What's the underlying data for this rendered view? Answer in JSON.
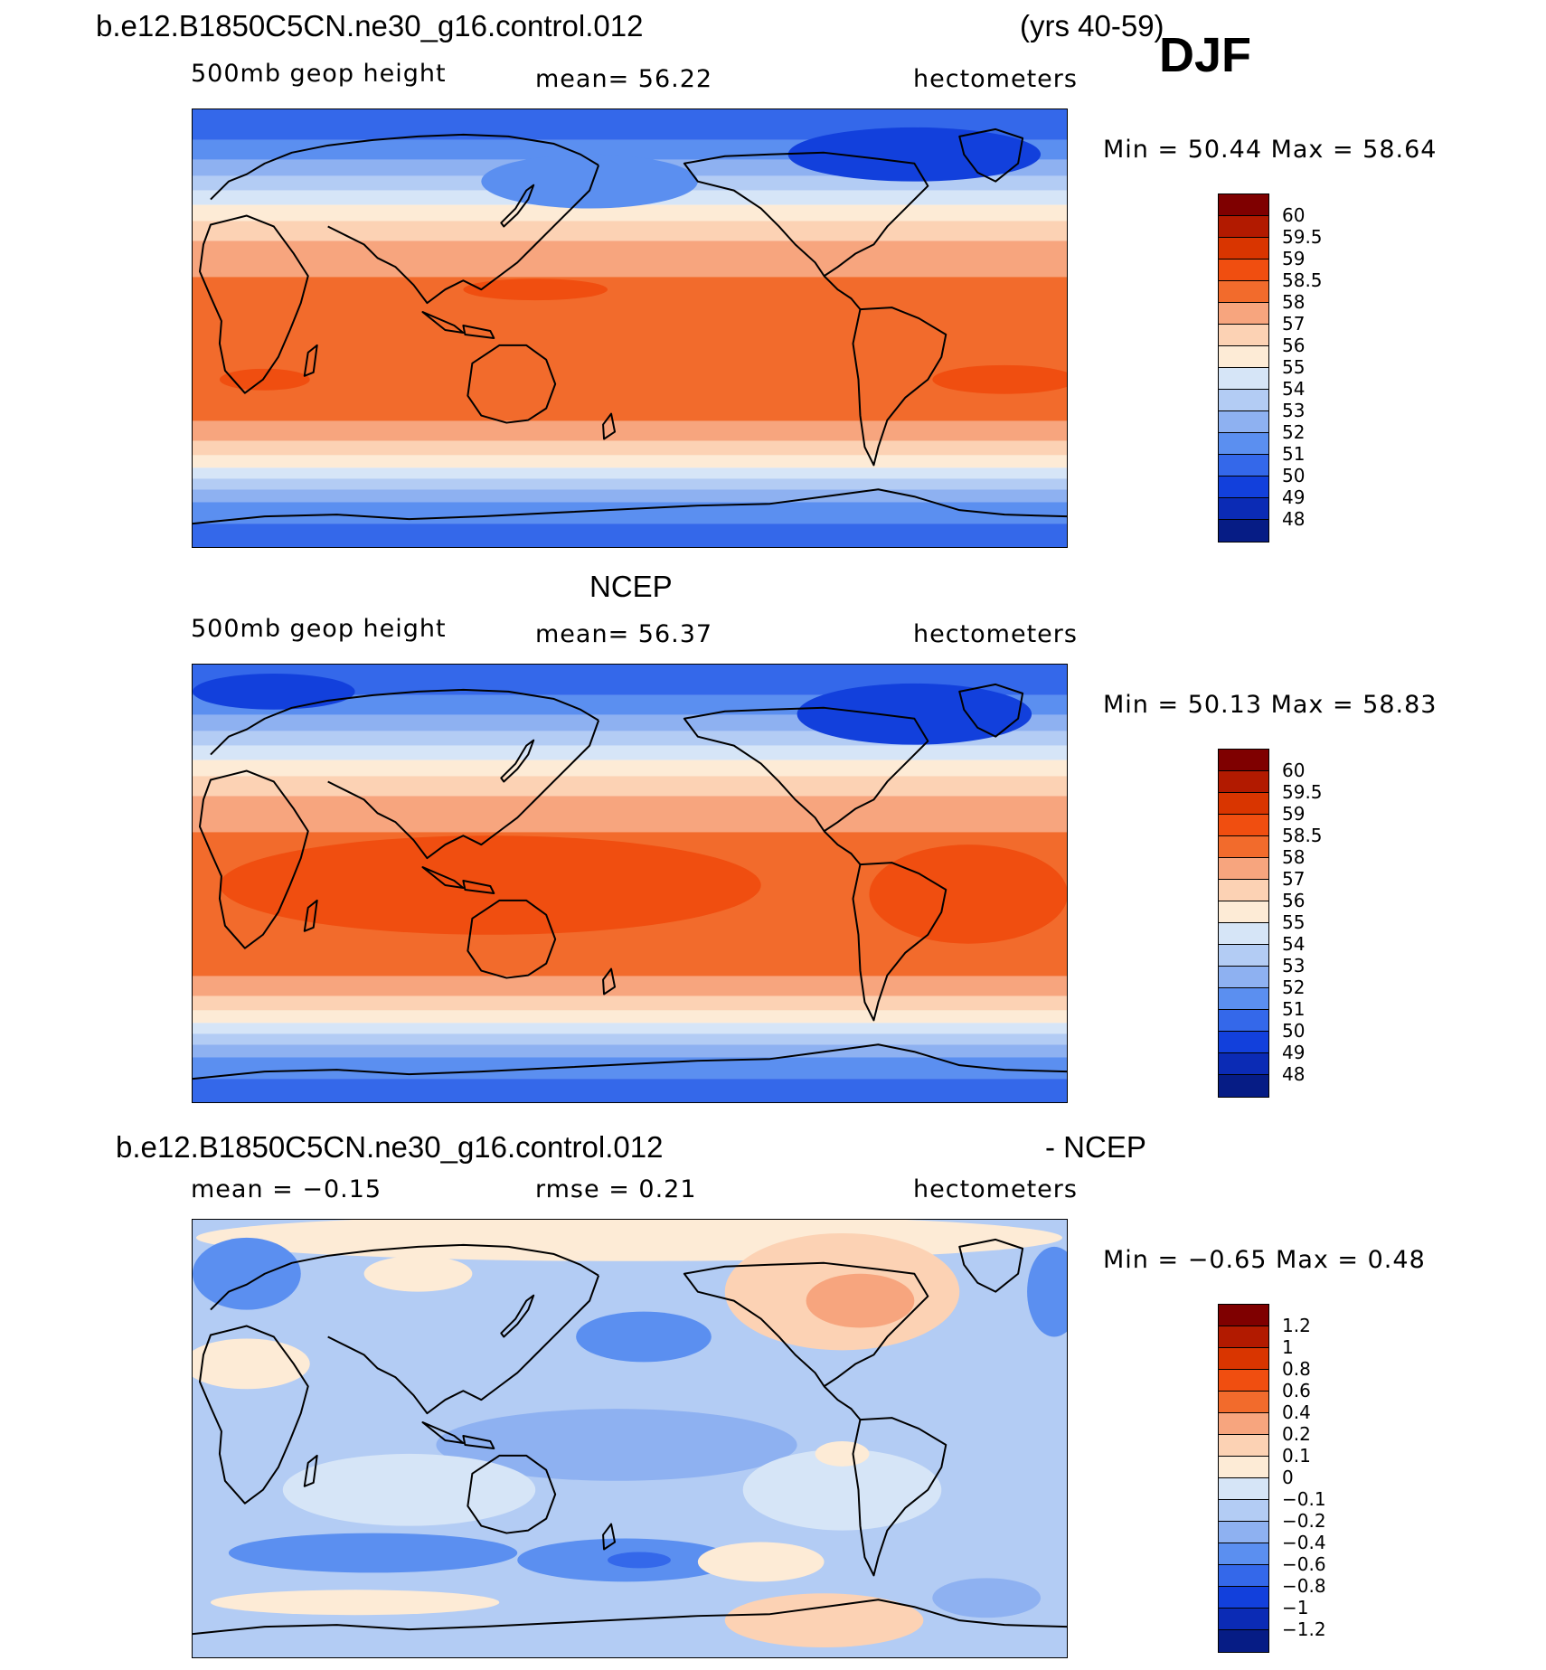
{
  "header": {
    "case_name": "b.e12.B1850C5CN.ne30_g16.control.012",
    "years": "(yrs 40-59)",
    "season": "DJF"
  },
  "panels": [
    {
      "id": "model",
      "title": "",
      "variable": "500mb geop height",
      "stat_left": "mean=   56.22",
      "units": "hectometers",
      "minmax": "Min =   50.44 Max =   58.64",
      "colorbar_labels": [
        "60",
        "59.5",
        "59",
        "58.5",
        "58",
        "57",
        "56",
        "55",
        "54",
        "53",
        "52",
        "51",
        "50",
        "49",
        "48"
      ],
      "colors": [
        "#7f0000",
        "#b21a00",
        "#d93500",
        "#f04e10",
        "#f26b2c",
        "#f7a57e",
        "#fcd2b4",
        "#fdebd6",
        "#d6e5f7",
        "#b3ccf4",
        "#8eb1f1",
        "#5b8ff0",
        "#3468ea",
        "#1240dc",
        "#0b2bb5",
        "#061c85"
      ]
    },
    {
      "id": "obs",
      "title": "NCEP",
      "variable": "500mb geop height",
      "stat_left": "mean=   56.37",
      "units": "hectometers",
      "minmax": "Min =   50.13 Max =   58.83",
      "colorbar_labels": [
        "60",
        "59.5",
        "59",
        "58.5",
        "58",
        "57",
        "56",
        "55",
        "54",
        "53",
        "52",
        "51",
        "50",
        "49",
        "48"
      ],
      "colors": [
        "#7f0000",
        "#b21a00",
        "#d93500",
        "#f04e10",
        "#f26b2c",
        "#f7a57e",
        "#fcd2b4",
        "#fdebd6",
        "#d6e5f7",
        "#b3ccf4",
        "#8eb1f1",
        "#5b8ff0",
        "#3468ea",
        "#1240dc",
        "#0b2bb5",
        "#061c85"
      ]
    },
    {
      "id": "diff",
      "title": "b.e12.B1850C5CN.ne30_g16.control.012",
      "title_right": "- NCEP",
      "stat_left": "mean =   −0.15",
      "stat_mid": "rmse =    0.21",
      "units": "hectometers",
      "minmax": "Min =   −0.65 Max =    0.48",
      "colorbar_labels": [
        "1.2",
        "1",
        "0.8",
        "0.6",
        "0.4",
        "0.2",
        "0.1",
        "0",
        "−0.1",
        "−0.2",
        "−0.4",
        "−0.6",
        "−0.8",
        "−1",
        "−1.2"
      ],
      "colors": [
        "#7f0000",
        "#b21a00",
        "#d93500",
        "#f04e10",
        "#f26b2c",
        "#f7a57e",
        "#fcd2b4",
        "#fdebd6",
        "#d6e5f7",
        "#b3ccf4",
        "#8eb1f1",
        "#5b8ff0",
        "#3468ea",
        "#1240dc",
        "#0b2bb5",
        "#061c85"
      ]
    }
  ]
}
